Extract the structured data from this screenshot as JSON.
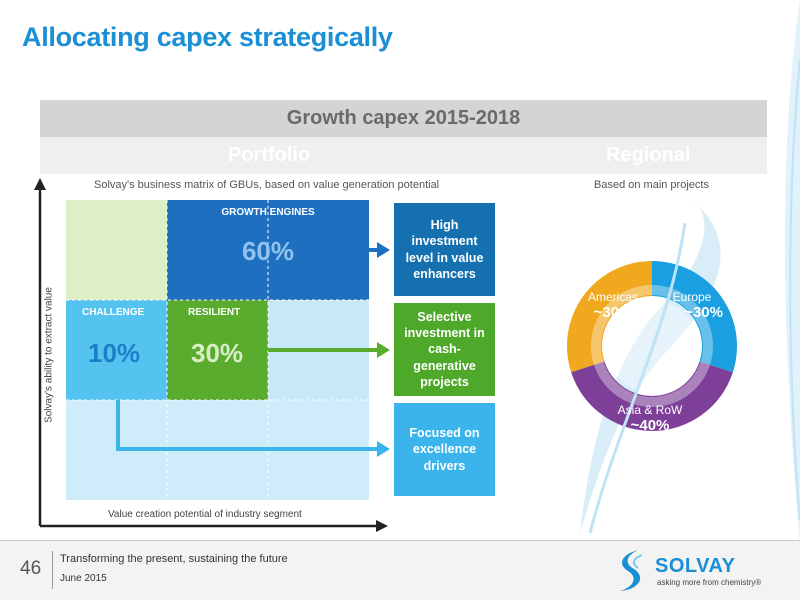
{
  "title": "Allocating capex strategically",
  "header": {
    "band_title": "Growth capex 2015-2018",
    "portfolio_label": "Portfolio",
    "regional_label": "Regional"
  },
  "portfolio": {
    "subtitle": "Solvay's business matrix of GBUs, based on value generation potential",
    "y_axis_label": "Solvay's ability to extract value",
    "x_axis_label": "Value creation potential of industry segment",
    "growth_engines": {
      "label": "GROWTH ENGINES",
      "value": "60%"
    },
    "challenge": {
      "label": "CHALLENGE",
      "value": "10%"
    },
    "resilient": {
      "label": "RESILIENT",
      "value": "30%"
    },
    "boxes": [
      "High investment level in value enhancers",
      "Selective investment in cash-generative projects",
      "Focused on excellence drivers"
    ]
  },
  "regional": {
    "subtitle": "Based on main projects",
    "segments": [
      {
        "name": "Americas",
        "value": "~30%",
        "share": 30,
        "color": "#f0a81e"
      },
      {
        "name": "Europe",
        "value": "~30%",
        "share": 30,
        "color": "#1a9fe0"
      },
      {
        "name": "Asia & RoW",
        "value": "~40%",
        "share": 40,
        "color": "#7d3f98"
      }
    ]
  },
  "footer": {
    "page_number": "46",
    "line1": "Transforming the present, sustaining the future",
    "line2": "June 2015",
    "brand": "SOLVAY",
    "tagline": "asking more from chemistry®"
  },
  "colors": {
    "accent": "#1a8fd6",
    "growth_engines": "#1e6fc0",
    "resilient": "#5aac2e",
    "challenge": "#54c3f0",
    "light_green": "#dcefc5",
    "light_blue": "#c8e8f8",
    "box_navy": "#1570b0",
    "box_green": "#4ea82a",
    "box_sky": "#3ab4ea"
  }
}
